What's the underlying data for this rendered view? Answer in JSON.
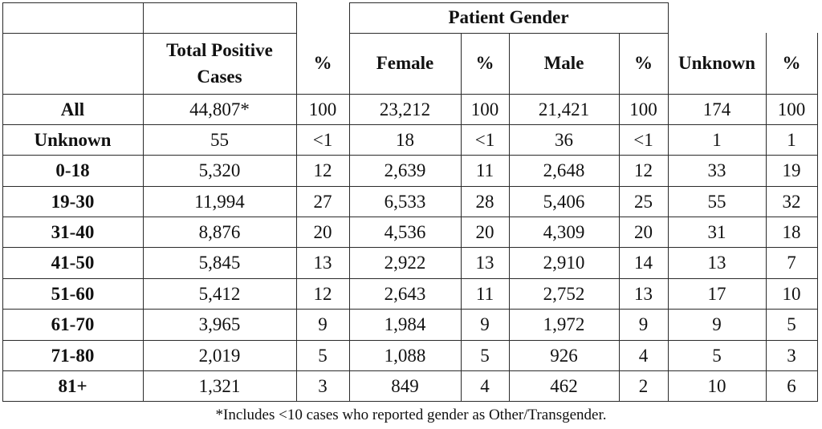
{
  "table": {
    "group_header": "Patient Gender",
    "columns": [
      "",
      "Total Positive Cases",
      "%",
      "Female",
      "%",
      "Male",
      "%",
      "Unknown",
      "%"
    ],
    "rows": [
      [
        "All",
        "44,807*",
        "100",
        "23,212",
        "100",
        "21,421",
        "100",
        "174",
        "100"
      ],
      [
        "Unknown",
        "55",
        "<1",
        "18",
        "<1",
        "36",
        "<1",
        "1",
        "1"
      ],
      [
        "0-18",
        "5,320",
        "12",
        "2,639",
        "11",
        "2,648",
        "12",
        "33",
        "19"
      ],
      [
        "19-30",
        "11,994",
        "27",
        "6,533",
        "28",
        "5,406",
        "25",
        "55",
        "32"
      ],
      [
        "31-40",
        "8,876",
        "20",
        "4,536",
        "20",
        "4,309",
        "20",
        "31",
        "18"
      ],
      [
        "41-50",
        "5,845",
        "13",
        "2,922",
        "13",
        "2,910",
        "14",
        "13",
        "7"
      ],
      [
        "51-60",
        "5,412",
        "12",
        "2,643",
        "11",
        "2,752",
        "13",
        "17",
        "10"
      ],
      [
        "61-70",
        "3,965",
        "9",
        "1,984",
        "9",
        "1,972",
        "9",
        "9",
        "5"
      ],
      [
        "71-80",
        "2,019",
        "5",
        "1,088",
        "5",
        "926",
        "4",
        "5",
        "3"
      ],
      [
        "81+",
        "1,321",
        "3",
        "849",
        "4",
        "462",
        "2",
        "10",
        "6"
      ]
    ],
    "footnote": "*Includes <10 cases who reported gender as Other/Transgender."
  }
}
